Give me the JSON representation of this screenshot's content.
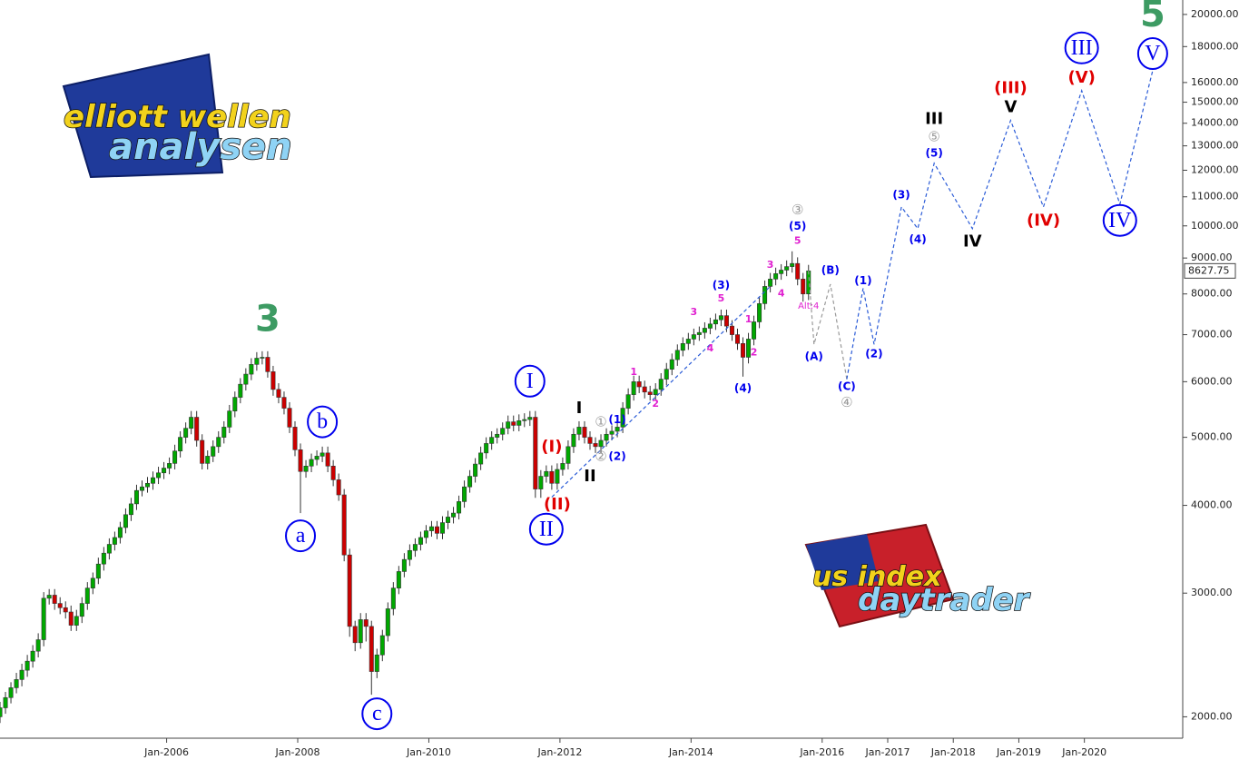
{
  "chart_data": {
    "type": "candlestick",
    "log": true,
    "grid": false,
    "up_color": "#00a800",
    "down_color": "#cc0000",
    "xlim": [
      "Jun-2003",
      "Jul-2021"
    ],
    "xticks": [
      "Jan-2006",
      "Jan-2008",
      "Jan-2010",
      "Jan-2012",
      "Jan-2014",
      "Jan-2016",
      "Jan-2017",
      "Jan-2018",
      "Jan-2019",
      "Jan-2020"
    ],
    "ylim": [
      1870,
      20970
    ],
    "yticks": [
      {
        "value": 2000,
        "label": "2000.00"
      },
      {
        "value": 3000,
        "label": "3000.00"
      },
      {
        "value": 4000,
        "label": "4000.00"
      },
      {
        "value": 5000,
        "label": "5000.00"
      },
      {
        "value": 6000,
        "label": "6000.00"
      },
      {
        "value": 7000,
        "label": "7000.00"
      },
      {
        "value": 8000,
        "label": "8000.00"
      },
      {
        "value": 9000,
        "label": "9000.00"
      },
      {
        "value": 10000,
        "label": "10000.00"
      },
      {
        "value": 11000,
        "label": "11000.00"
      },
      {
        "value": 12000,
        "label": "12000.00"
      },
      {
        "value": 13000,
        "label": "13000.00"
      },
      {
        "value": 14000,
        "label": "14000.00"
      },
      {
        "value": 15000,
        "label": "15000.00"
      },
      {
        "value": 16000,
        "label": "16000.00"
      },
      {
        "value": 18000,
        "label": "18000.00"
      },
      {
        "value": 20000,
        "label": "20000.00"
      }
    ],
    "last_price": {
      "value": 8627.75,
      "label": "8627.75"
    },
    "x": [
      "Jun-2003",
      "Jul-2003",
      "Aug-2003",
      "Sep-2003",
      "Oct-2003",
      "Nov-2003",
      "Dec-2003",
      "Jan-2004",
      "Feb-2004",
      "Mar-2004",
      "Apr-2004",
      "May-2004",
      "Jun-2004",
      "Jul-2004",
      "Aug-2004",
      "Sep-2004",
      "Oct-2004",
      "Nov-2004",
      "Dec-2004",
      "Jan-2005",
      "Feb-2005",
      "Mar-2005",
      "Apr-2005",
      "May-2005",
      "Jun-2005",
      "Jul-2005",
      "Aug-2005",
      "Sep-2005",
      "Oct-2005",
      "Nov-2005",
      "Dec-2005",
      "Jan-2006",
      "Feb-2006",
      "Mar-2006",
      "Apr-2006",
      "May-2006",
      "Jun-2006",
      "Jul-2006",
      "Aug-2006",
      "Sep-2006",
      "Oct-2006",
      "Nov-2006",
      "Dec-2006",
      "Jan-2007",
      "Feb-2007",
      "Mar-2007",
      "Apr-2007",
      "May-2007",
      "Jun-2007",
      "Jul-2007",
      "Aug-2007",
      "Sep-2007",
      "Oct-2007",
      "Nov-2007",
      "Dec-2007",
      "Jan-2008",
      "Feb-2008",
      "Mar-2008",
      "Apr-2008",
      "May-2008",
      "Jun-2008",
      "Jul-2008",
      "Aug-2008",
      "Sep-2008",
      "Oct-2008",
      "Nov-2008",
      "Dec-2008",
      "Jan-2009",
      "Feb-2009",
      "Mar-2009",
      "Apr-2009",
      "May-2009",
      "Jun-2009",
      "Jul-2009",
      "Aug-2009",
      "Sep-2009",
      "Oct-2009",
      "Nov-2009",
      "Dec-2009",
      "Jan-2010",
      "Feb-2010",
      "Mar-2010",
      "Apr-2010",
      "May-2010",
      "Jun-2010",
      "Jul-2010",
      "Aug-2010",
      "Sep-2010",
      "Oct-2010",
      "Nov-2010",
      "Dec-2010",
      "Jan-2011",
      "Feb-2011",
      "Mar-2011",
      "Apr-2011",
      "May-2011",
      "Jun-2011",
      "Jul-2011",
      "Aug-2011",
      "Sep-2011",
      "Oct-2011",
      "Nov-2011",
      "Dec-2011",
      "Jan-2012",
      "Feb-2012",
      "Mar-2012",
      "Apr-2012",
      "May-2012",
      "Jun-2012",
      "Jul-2012",
      "Aug-2012",
      "Sep-2012",
      "Oct-2012",
      "Nov-2012",
      "Dec-2012",
      "Jan-2013",
      "Feb-2013",
      "Mar-2013",
      "Apr-2013",
      "May-2013",
      "Jun-2013",
      "Jul-2013",
      "Aug-2013",
      "Sep-2013",
      "Oct-2013",
      "Nov-2013",
      "Dec-2013",
      "Jan-2014",
      "Feb-2014",
      "Mar-2014",
      "Apr-2014",
      "May-2014",
      "Jun-2014",
      "Jul-2014",
      "Aug-2014",
      "Sep-2014",
      "Oct-2014",
      "Nov-2014",
      "Dec-2014",
      "Jan-2015",
      "Feb-2015",
      "Mar-2015",
      "Apr-2015",
      "May-2015",
      "Jun-2015",
      "Jul-2015",
      "Aug-2015",
      "Sep-2015",
      "Oct-2015"
    ],
    "open": [
      2000,
      2060,
      2130,
      2200,
      2260,
      2330,
      2400,
      2480,
      2575,
      2950,
      2980,
      2900,
      2860,
      2820,
      2700,
      2780,
      2900,
      3050,
      3150,
      3300,
      3420,
      3520,
      3600,
      3720,
      3880,
      4020,
      4200,
      4250,
      4300,
      4380,
      4450,
      4520,
      4590,
      4780,
      5000,
      5150,
      5340,
      4950,
      4590,
      4700,
      4850,
      5000,
      5170,
      5450,
      5700,
      5950,
      6150,
      6350,
      6480,
      6500,
      6200,
      5850,
      5700,
      5500,
      5170,
      4800,
      4470,
      4550,
      4650,
      4700,
      4750,
      4550,
      4350,
      4140,
      3400,
      2690,
      2550,
      2750,
      2690,
      2320,
      2450,
      2610,
      2850,
      3050,
      3220,
      3350,
      3450,
      3520,
      3600,
      3680,
      3730,
      3650,
      3780,
      3850,
      3900,
      4050,
      4250,
      4400,
      4580,
      4750,
      4900,
      5000,
      5050,
      5150,
      5260,
      5200,
      5280,
      5300,
      5340,
      4220,
      4400,
      4470,
      4300,
      4500,
      4590,
      4850,
      5050,
      5170,
      5000,
      4900,
      4850,
      4950,
      5050,
      5100,
      5170,
      5500,
      5750,
      6000,
      5900,
      5800,
      5750,
      5850,
      6050,
      6250,
      6450,
      6650,
      6800,
      6900,
      7000,
      7050,
      7150,
      7250,
      7350,
      7450,
      7200,
      7000,
      6800,
      6500,
      6900,
      7300,
      7750,
      8200,
      8400,
      8550,
      8650,
      8750,
      8840,
      8400,
      8000
    ],
    "high": [
      2100,
      2170,
      2240,
      2310,
      2380,
      2450,
      2530,
      2630,
      3010,
      3040,
      3040,
      2960,
      2920,
      2880,
      2840,
      2960,
      3110,
      3210,
      3370,
      3490,
      3590,
      3670,
      3790,
      3960,
      4100,
      4280,
      4340,
      4390,
      4470,
      4540,
      4610,
      4680,
      4880,
      5100,
      5250,
      5450,
      5450,
      5050,
      4790,
      4950,
      5100,
      5270,
      5560,
      5810,
      6070,
      6270,
      6480,
      6610,
      6630,
      6630,
      6320,
      5970,
      5810,
      5610,
      5270,
      4900,
      4640,
      4740,
      4790,
      4850,
      4850,
      4640,
      4440,
      4220,
      3470,
      2740,
      2810,
      2810,
      2740,
      2500,
      2660,
      2910,
      3110,
      3280,
      3420,
      3520,
      3590,
      3670,
      3750,
      3800,
      3800,
      3860,
      3930,
      3980,
      4130,
      4340,
      4490,
      4670,
      4850,
      5000,
      5100,
      5150,
      5250,
      5370,
      5370,
      5390,
      5410,
      5450,
      5450,
      4490,
      4560,
      4560,
      4590,
      4680,
      4950,
      5150,
      5270,
      5270,
      5100,
      5000,
      5050,
      5150,
      5200,
      5270,
      5610,
      5870,
      6120,
      6120,
      6020,
      5920,
      5970,
      6170,
      6380,
      6580,
      6780,
      6940,
      7040,
      7140,
      7190,
      7290,
      7400,
      7500,
      7600,
      7600,
      7340,
      7140,
      6940,
      7040,
      7450,
      7910,
      8360,
      8570,
      8720,
      8820,
      8930,
      9200,
      9020,
      8570,
      8800
    ],
    "low": [
      1960,
      2020,
      2090,
      2160,
      2210,
      2280,
      2350,
      2430,
      2520,
      2890,
      2840,
      2800,
      2760,
      2650,
      2650,
      2720,
      2840,
      2990,
      3090,
      3230,
      3350,
      3450,
      3530,
      3650,
      3800,
      3940,
      4120,
      4170,
      4210,
      4290,
      4360,
      4430,
      4500,
      4680,
      4900,
      5050,
      4850,
      4500,
      4500,
      4610,
      4750,
      4900,
      5070,
      5340,
      5590,
      5830,
      6030,
      6220,
      6350,
      6080,
      5730,
      5590,
      5390,
      5070,
      4700,
      3900,
      4380,
      4460,
      4560,
      4610,
      4460,
      4260,
      4060,
      3330,
      2600,
      2480,
      2500,
      2560,
      2150,
      2270,
      2400,
      2560,
      2790,
      2990,
      3160,
      3280,
      3380,
      3450,
      3530,
      3610,
      3580,
      3580,
      3700,
      3770,
      3820,
      3970,
      4170,
      4310,
      4490,
      4660,
      4800,
      4900,
      4950,
      5050,
      5100,
      5100,
      5170,
      5190,
      4100,
      4100,
      4310,
      4210,
      4210,
      4410,
      4500,
      4750,
      4950,
      4900,
      4800,
      4750,
      4750,
      4850,
      4950,
      5000,
      5070,
      5390,
      5640,
      5780,
      5680,
      5640,
      5640,
      5730,
      5930,
      6130,
      6320,
      6520,
      6660,
      6760,
      6860,
      6910,
      7010,
      7110,
      7200,
      7060,
      6860,
      6660,
      6100,
      6370,
      6760,
      7150,
      7600,
      8040,
      8230,
      8380,
      8480,
      8580,
      8230,
      7800,
      7840
    ],
    "close": [
      2060,
      2130,
      2200,
      2260,
      2330,
      2400,
      2480,
      2575,
      2950,
      2980,
      2900,
      2860,
      2820,
      2700,
      2780,
      2900,
      3050,
      3150,
      3300,
      3420,
      3520,
      3600,
      3720,
      3880,
      4020,
      4200,
      4250,
      4300,
      4380,
      4450,
      4520,
      4590,
      4780,
      5000,
      5150,
      5340,
      4950,
      4590,
      4700,
      4850,
      5000,
      5170,
      5450,
      5700,
      5950,
      6150,
      6350,
      6480,
      6500,
      6200,
      5850,
      5700,
      5500,
      5170,
      4800,
      4470,
      4550,
      4650,
      4700,
      4750,
      4550,
      4350,
      4140,
      3400,
      2690,
      2550,
      2750,
      2690,
      2320,
      2450,
      2610,
      2850,
      3050,
      3220,
      3350,
      3450,
      3520,
      3600,
      3680,
      3730,
      3650,
      3780,
      3850,
      3900,
      4050,
      4250,
      4400,
      4580,
      4750,
      4900,
      5000,
      5050,
      5150,
      5260,
      5200,
      5280,
      5300,
      5340,
      4220,
      4400,
      4470,
      4300,
      4500,
      4590,
      4850,
      5050,
      5170,
      5000,
      4900,
      4850,
      4950,
      5050,
      5100,
      5170,
      5500,
      5750,
      6000,
      5900,
      5800,
      5750,
      5850,
      6050,
      6250,
      6450,
      6650,
      6800,
      6900,
      7000,
      7050,
      7150,
      7250,
      7350,
      7450,
      7200,
      7000,
      6800,
      6500,
      6900,
      7300,
      7750,
      8200,
      8400,
      8550,
      8650,
      8750,
      8840,
      8400,
      8000,
      8627.75
    ],
    "paths": [
      {
        "color": "#2a5bd7",
        "x": [
          "Nov-2011",
          "Mar-2015"
        ],
        "values": [
          4110,
          8200
        ]
      },
      {
        "color": "#999999",
        "x": [
          "Oct-2015",
          "Nov-2015",
          "Feb-2016",
          "May-2016"
        ],
        "values": [
          8627.75,
          6780,
          8260,
          6050
        ]
      },
      {
        "color": "#2a5bd7",
        "x": [
          "May-2016",
          "Aug-2016",
          "Oct-2016",
          "Mar-2017",
          "Jun-2017",
          "Sep-2017",
          "Apr-2018",
          "Nov-2018",
          "May-2019",
          "Dec-2019",
          "Jul-2020",
          "Jan-2021"
        ],
        "values": [
          6050,
          8150,
          6780,
          10640,
          9910,
          12280,
          9910,
          14130,
          10640,
          15580,
          10740,
          16640
        ]
      }
    ],
    "annotations": [
      {
        "text": "3",
        "x": "Jul-2007",
        "y": 7360,
        "color": "#3d9b63",
        "style": "big"
      },
      {
        "text": "b",
        "x": "May-2008",
        "y": 5260,
        "color": "#0000ee",
        "style": "circled"
      },
      {
        "text": "a",
        "x": "Jan-2008",
        "y": 3620,
        "color": "#0000ee",
        "style": "circled"
      },
      {
        "text": "c",
        "x": "Mar-2009",
        "y": 2020,
        "color": "#0000ee",
        "style": "circled"
      },
      {
        "text": "I",
        "x": "Jul-2011",
        "y": 6010,
        "color": "#0000ee",
        "style": "circled"
      },
      {
        "text": "II",
        "x": "Oct-2011",
        "y": 3700,
        "color": "#0000ee",
        "style": "circled"
      },
      {
        "text": "(I)",
        "x": "Nov-2011",
        "y": 4850,
        "color": "#e00000",
        "style": "bold"
      },
      {
        "text": "(II)",
        "x": "Dec-2011",
        "y": 4010,
        "color": "#e00000",
        "style": "bold"
      },
      {
        "text": "I",
        "x": "Apr-2012",
        "y": 5500,
        "color": "#000000",
        "style": "bold"
      },
      {
        "text": "II",
        "x": "Jun-2012",
        "y": 4400,
        "color": "#000000",
        "style": "bold"
      },
      {
        "text": "①",
        "x": "Aug-2012",
        "y": 5260,
        "color": "#999999",
        "style": "symbol"
      },
      {
        "text": "②",
        "x": "Aug-2012",
        "y": 4700,
        "color": "#999999",
        "style": "symbol"
      },
      {
        "text": "(1)",
        "x": "Nov-2012",
        "y": 5300,
        "color": "#0000ee",
        "style": "paren"
      },
      {
        "text": "(2)",
        "x": "Nov-2012",
        "y": 4700,
        "color": "#0000ee",
        "style": "paren"
      },
      {
        "text": "1",
        "x": "Feb-2013",
        "y": 6200,
        "color": "#e020d0",
        "style": "small"
      },
      {
        "text": "2",
        "x": "Jun-2013",
        "y": 5580,
        "color": "#e020d0",
        "style": "small"
      },
      {
        "text": "3",
        "x": "Jan-2014",
        "y": 7540,
        "color": "#e020d0",
        "style": "small"
      },
      {
        "text": "4",
        "x": "Apr-2014",
        "y": 6700,
        "color": "#e020d0",
        "style": "small"
      },
      {
        "text": "5",
        "x": "Jun-2014",
        "y": 7890,
        "color": "#e020d0",
        "style": "small"
      },
      {
        "text": "(3)",
        "x": "Jun-2014",
        "y": 8240,
        "color": "#0000ee",
        "style": "paren"
      },
      {
        "text": "(4)",
        "x": "Oct-2014",
        "y": 5870,
        "color": "#0000ee",
        "style": "paren"
      },
      {
        "text": "1",
        "x": "Nov-2014",
        "y": 7360,
        "color": "#e020d0",
        "style": "small"
      },
      {
        "text": "2",
        "x": "Dec-2014",
        "y": 6610,
        "color": "#e020d0",
        "style": "small"
      },
      {
        "text": "3",
        "x": "Mar-2015",
        "y": 8800,
        "color": "#e020d0",
        "style": "small"
      },
      {
        "text": "4",
        "x": "May-2015",
        "y": 8020,
        "color": "#e020d0",
        "style": "small"
      },
      {
        "text": "5",
        "x": "Aug-2015",
        "y": 9530,
        "color": "#e020d0",
        "style": "small"
      },
      {
        "text": "(5)",
        "x": "Aug-2015",
        "y": 10000,
        "color": "#0000ee",
        "style": "paren"
      },
      {
        "text": "③",
        "x": "Aug-2015",
        "y": 10550,
        "color": "#999999",
        "style": "symbol"
      },
      {
        "text": "Alt:4",
        "x": "Oct-2015",
        "y": 7680,
        "color": "#e020d0",
        "style": "tiny"
      },
      {
        "text": "(A)",
        "x": "Nov-2015",
        "y": 6520,
        "color": "#0000ee",
        "style": "paren"
      },
      {
        "text": "(B)",
        "x": "Feb-2016",
        "y": 8650,
        "color": "#0000ee",
        "style": "paren"
      },
      {
        "text": "(C)",
        "x": "May-2016",
        "y": 5910,
        "color": "#0000ee",
        "style": "paren"
      },
      {
        "text": "④",
        "x": "May-2016",
        "y": 5610,
        "color": "#999999",
        "style": "symbol"
      },
      {
        "text": "(1)",
        "x": "Aug-2016",
        "y": 8360,
        "color": "#0000ee",
        "style": "paren"
      },
      {
        "text": "(2)",
        "x": "Oct-2016",
        "y": 6580,
        "color": "#0000ee",
        "style": "paren"
      },
      {
        "text": "(3)",
        "x": "Mar-2017",
        "y": 11070,
        "color": "#0000ee",
        "style": "paren"
      },
      {
        "text": "(4)",
        "x": "Jun-2017",
        "y": 9570,
        "color": "#0000ee",
        "style": "paren"
      },
      {
        "text": "(5)",
        "x": "Sep-2017",
        "y": 12690,
        "color": "#0000ee",
        "style": "paren"
      },
      {
        "text": "⑤",
        "x": "Sep-2017",
        "y": 13390,
        "color": "#999999",
        "style": "symbol"
      },
      {
        "text": "III",
        "x": "Sep-2017",
        "y": 14200,
        "color": "#000000",
        "style": "bold"
      },
      {
        "text": "IV",
        "x": "Apr-2018",
        "y": 9500,
        "color": "#000000",
        "style": "bold"
      },
      {
        "text": "V",
        "x": "Nov-2018",
        "y": 14760,
        "color": "#000000",
        "style": "bold"
      },
      {
        "text": "(III)",
        "x": "Nov-2018",
        "y": 15720,
        "color": "#e00000",
        "style": "bold"
      },
      {
        "text": "(IV)",
        "x": "May-2019",
        "y": 10180,
        "color": "#e00000",
        "style": "bold"
      },
      {
        "text": "(V)",
        "x": "Dec-2019",
        "y": 16250,
        "color": "#e00000",
        "style": "bold"
      },
      {
        "text": "III",
        "x": "Dec-2019",
        "y": 17920,
        "color": "#0000ee",
        "style": "circled"
      },
      {
        "text": "IV",
        "x": "Jul-2020",
        "y": 10180,
        "color": "#0000ee",
        "style": "circled"
      },
      {
        "text": "V",
        "x": "Jan-2021",
        "y": 17590,
        "color": "#0000ee",
        "style": "circled"
      },
      {
        "text": "5",
        "x": "Jan-2021",
        "y": 20000,
        "color": "#3d9b63",
        "style": "big"
      }
    ]
  },
  "logos": [
    {
      "lines": [
        "elliott wellen",
        "analysen"
      ]
    },
    {
      "lines": [
        "us index",
        "daytrader"
      ]
    }
  ]
}
